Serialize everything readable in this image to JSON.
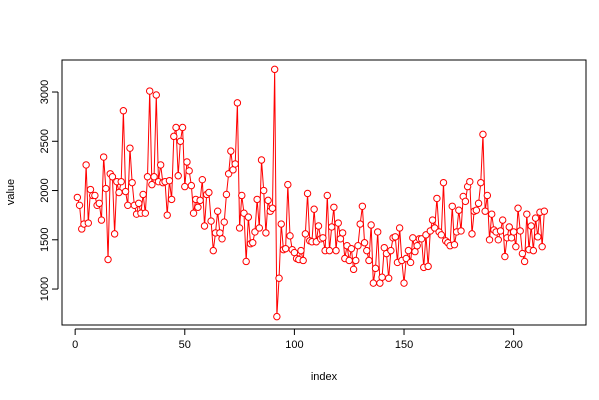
{
  "chart_data": {
    "type": "line",
    "xlabel": "index",
    "ylabel": "value",
    "color": "#ff0000",
    "marker": "open-circle",
    "xlim": [
      -6,
      233
    ],
    "ylim": [
      635,
      3325
    ],
    "xticks": [
      0,
      50,
      100,
      150,
      200
    ],
    "yticks": [
      1000,
      1500,
      2000,
      2500,
      3000
    ],
    "x": [
      1,
      2,
      3,
      4,
      5,
      6,
      7,
      8,
      9,
      10,
      11,
      12,
      13,
      14,
      15,
      16,
      17,
      18,
      19,
      20,
      21,
      22,
      23,
      24,
      25,
      26,
      27,
      28,
      29,
      30,
      31,
      32,
      33,
      34,
      35,
      36,
      37,
      38,
      39,
      40,
      41,
      42,
      43,
      44,
      45,
      46,
      47,
      48,
      49,
      50,
      51,
      52,
      53,
      54,
      55,
      56,
      57,
      58,
      59,
      60,
      61,
      62,
      63,
      64,
      65,
      66,
      67,
      68,
      69,
      70,
      71,
      72,
      73,
      74,
      75,
      76,
      77,
      78,
      79,
      80,
      81,
      82,
      83,
      84,
      85,
      86,
      87,
      88,
      89,
      90,
      91,
      92,
      93,
      94,
      95,
      96,
      97,
      98,
      99,
      100,
      101,
      102,
      103,
      104,
      105,
      106,
      107,
      108,
      109,
      110,
      111,
      112,
      113,
      114,
      115,
      116,
      117,
      118,
      119,
      120,
      121,
      122,
      123,
      124,
      125,
      126,
      127,
      128,
      129,
      130,
      131,
      132,
      133,
      134,
      135,
      136,
      137,
      138,
      139,
      140,
      141,
      142,
      143,
      144,
      145,
      146,
      147,
      148,
      149,
      150,
      151,
      152,
      153,
      154,
      155,
      156,
      157,
      158,
      159,
      160,
      161,
      162,
      163,
      164,
      165,
      166,
      167,
      168,
      169,
      170,
      171,
      172,
      173,
      174,
      175,
      176,
      177,
      178,
      179,
      180,
      181,
      182,
      183,
      184,
      185,
      186,
      187,
      188,
      189,
      190,
      191,
      192,
      193,
      194,
      195,
      196,
      197,
      198,
      199,
      200,
      201,
      202,
      203,
      204,
      205,
      206,
      207,
      208,
      209,
      210,
      211,
      212,
      213,
      214
    ],
    "values": [
      1930,
      1850,
      1610,
      1660,
      2260,
      1670,
      2010,
      1950,
      1950,
      1850,
      1870,
      1700,
      2340,
      2020,
      1300,
      2170,
      2140,
      1560,
      2090,
      1980,
      2090,
      2810,
      1990,
      1850,
      2430,
      2080,
      1850,
      1760,
      1870,
      1770,
      1960,
      1770,
      2140,
      3010,
      2060,
      2140,
      2970,
      2090,
      2260,
      2080,
      2090,
      1750,
      2100,
      1910,
      2550,
      2640,
      2150,
      2500,
      2640,
      2040,
      2290,
      2200,
      2050,
      1770,
      1910,
      1830,
      1900,
      2110,
      1640,
      1960,
      1980,
      1690,
      1390,
      1570,
      1790,
      1570,
      1510,
      1680,
      1960,
      2170,
      2400,
      2210,
      2270,
      2890,
      1620,
      1950,
      1770,
      1280,
      1730,
      1460,
      1470,
      1580,
      1910,
      1620,
      2310,
      2000,
      1570,
      1900,
      1790,
      1820,
      3230,
      720,
      1110,
      1660,
      1400,
      1410,
      2060,
      1540,
      1400,
      1370,
      1310,
      1300,
      1390,
      1290,
      1560,
      1970,
      1490,
      1480,
      1810,
      1480,
      1640,
      1510,
      1520,
      1390,
      1950,
      1390,
      1630,
      1830,
      1390,
      1670,
      1510,
      1570,
      1310,
      1440,
      1290,
      1410,
      1200,
      1290,
      1440,
      1660,
      1840,
      1470,
      1390,
      1290,
      1650,
      1060,
      1210,
      1580,
      1060,
      1120,
      1420,
      1360,
      1110,
      1390,
      1520,
      1530,
      1270,
      1620,
      1290,
      1060,
      1310,
      1390,
      1270,
      1520,
      1380,
      1440,
      1510,
      1510,
      1220,
      1550,
      1230,
      1590,
      1700,
      1620,
      1920,
      1580,
      1550,
      2080,
      1490,
      1470,
      1440,
      1840,
      1450,
      1580,
      1800,
      1590,
      1940,
      1890,
      2040,
      2090,
      1560,
      1790,
      1800,
      1870,
      2080,
      2570,
      1790,
      1950,
      1500,
      1760,
      1600,
      1580,
      1500,
      1590,
      1700,
      1330,
      1520,
      1630,
      1520,
      1580,
      1430,
      1820,
      1590,
      1360,
      1280,
      1760,
      1400,
      1640,
      1390,
      1720,
      1530,
      1780,
      1430,
      1790
    ]
  }
}
